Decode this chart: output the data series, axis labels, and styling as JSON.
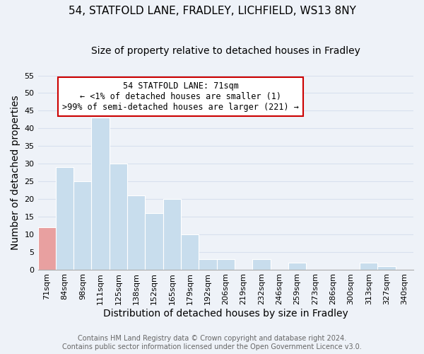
{
  "title": "54, STATFOLD LANE, FRADLEY, LICHFIELD, WS13 8NY",
  "subtitle": "Size of property relative to detached houses in Fradley",
  "xlabel": "Distribution of detached houses by size in Fradley",
  "ylabel": "Number of detached properties",
  "bin_labels": [
    "71sqm",
    "84sqm",
    "98sqm",
    "111sqm",
    "125sqm",
    "138sqm",
    "152sqm",
    "165sqm",
    "179sqm",
    "192sqm",
    "206sqm",
    "219sqm",
    "232sqm",
    "246sqm",
    "259sqm",
    "273sqm",
    "286sqm",
    "300sqm",
    "313sqm",
    "327sqm",
    "340sqm"
  ],
  "bar_heights": [
    12,
    29,
    25,
    43,
    30,
    21,
    16,
    20,
    10,
    3,
    3,
    0,
    3,
    0,
    2,
    0,
    0,
    0,
    2,
    1,
    0
  ],
  "highlight_bar_index": 0,
  "highlight_color": "#e8a0a0",
  "normal_color": "#c8dded",
  "ylim": [
    0,
    55
  ],
  "yticks": [
    0,
    5,
    10,
    15,
    20,
    25,
    30,
    35,
    40,
    45,
    50,
    55
  ],
  "annotation_title": "54 STATFOLD LANE: 71sqm",
  "annotation_line1": "← <1% of detached houses are smaller (1)",
  "annotation_line2": ">99% of semi-detached houses are larger (221) →",
  "annotation_box_color": "#ffffff",
  "annotation_box_edge": "#cc0000",
  "footer_line1": "Contains HM Land Registry data © Crown copyright and database right 2024.",
  "footer_line2": "Contains public sector information licensed under the Open Government Licence v3.0.",
  "background_color": "#eef2f8",
  "grid_color": "#d8e0ee",
  "title_fontsize": 11,
  "subtitle_fontsize": 10,
  "axis_label_fontsize": 10,
  "tick_fontsize": 8,
  "footer_fontsize": 7
}
